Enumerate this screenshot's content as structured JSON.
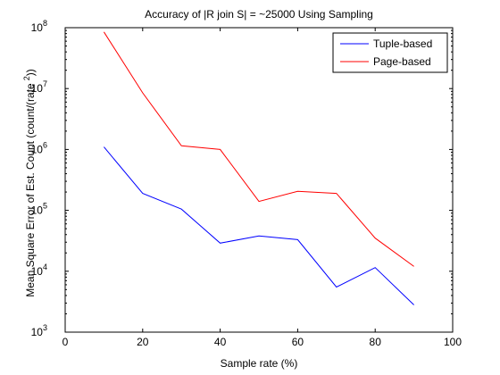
{
  "chart_data": {
    "type": "line",
    "title": "Accuracy of |R join S| = ~25000 Using Sampling",
    "xlabel": "Sample rate (%)",
    "ylabel": "Mean Square Error of Est. Count (count/(rate",
    "ylabel_sup": "2",
    "ylabel_end": "))",
    "x": [
      10,
      20,
      30,
      40,
      50,
      60,
      70,
      80,
      90
    ],
    "xlim": [
      0,
      100
    ],
    "xticks": [
      0,
      20,
      40,
      60,
      80,
      100
    ],
    "ylim": [
      1000,
      100000000
    ],
    "yscale": "log",
    "yticks": [
      {
        "base": "10",
        "exp": "3",
        "value": 1000
      },
      {
        "base": "10",
        "exp": "4",
        "value": 10000
      },
      {
        "base": "10",
        "exp": "5",
        "value": 100000
      },
      {
        "base": "10",
        "exp": "6",
        "value": 1000000
      },
      {
        "base": "10",
        "exp": "7",
        "value": 10000000
      },
      {
        "base": "10",
        "exp": "8",
        "value": 100000000
      }
    ],
    "grid": false,
    "legend_position": "top-right",
    "series": [
      {
        "name": "Tuple-based",
        "color": "#0000ff",
        "values": [
          1100000,
          190000,
          105000,
          29000,
          38000,
          33000,
          5500,
          11500,
          2800
        ]
      },
      {
        "name": "Page-based",
        "color": "#ff0000",
        "values": [
          85000000,
          8500000,
          1150000,
          1000000,
          140000,
          205000,
          190000,
          35000,
          12000
        ]
      }
    ]
  }
}
